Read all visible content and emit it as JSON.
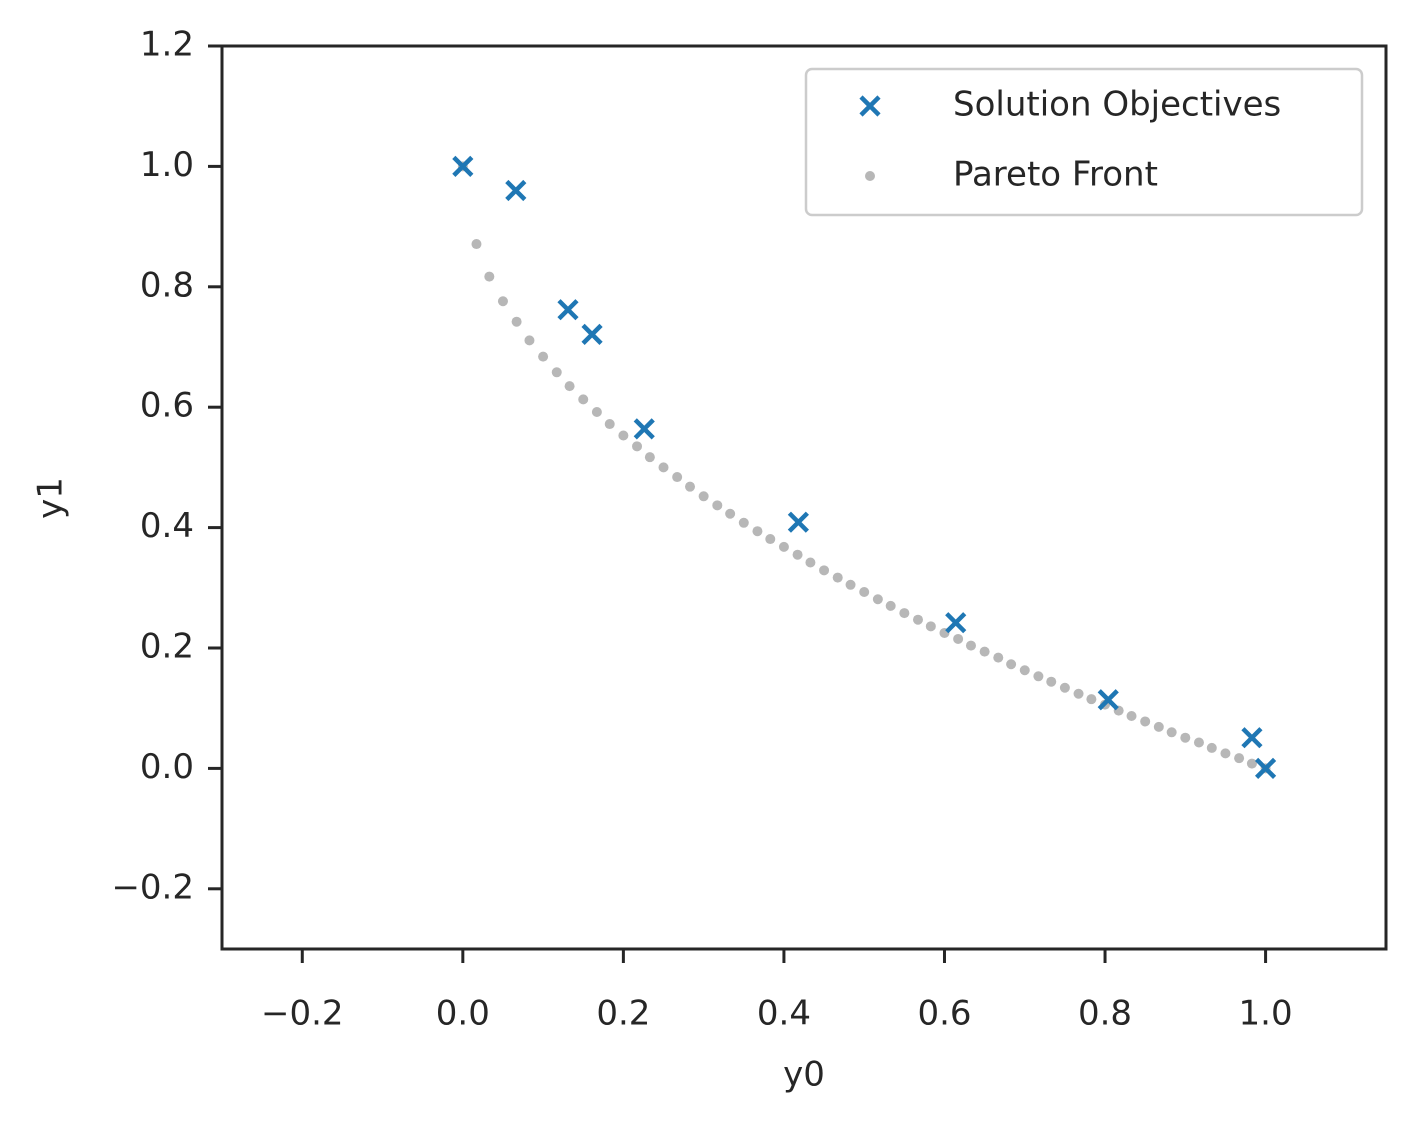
{
  "chart_data": {
    "type": "scatter",
    "xlabel": "y0",
    "ylabel": "y1",
    "xlim": [
      -0.3,
      1.15
    ],
    "ylim": [
      -0.3,
      1.2
    ],
    "xticks": [
      {
        "value": -0.2,
        "label": "−0.2"
      },
      {
        "value": 0,
        "label": "0.0"
      },
      0.2,
      0.4,
      0.6,
      0.8,
      {
        "value": 1,
        "label": "1.0"
      }
    ],
    "yticks": [
      {
        "value": -0.2,
        "label": "−0.2"
      },
      {
        "value": 0,
        "label": "0.0"
      },
      0.2,
      0.4,
      0.6,
      0.8,
      {
        "value": 1,
        "label": "1.0"
      },
      {
        "value": 1.2,
        "label": "1.2"
      }
    ],
    "grid": false,
    "legend": "upper right",
    "series": [
      {
        "name": "Solution Objectives",
        "color": "#1f77b4",
        "marker": "x",
        "x": [
          0.0,
          0.066,
          0.131,
          0.161,
          0.226,
          0.418,
          0.614,
          0.804,
          0.983,
          1.0
        ],
        "values": [
          1.0,
          0.96,
          0.762,
          0.721,
          0.564,
          0.409,
          0.242,
          0.114,
          0.051,
          0.0
        ]
      },
      {
        "name": "Pareto Front",
        "color": "#aaaaaa",
        "marker": "o",
        "x": [
          0,
          0.017,
          0.033,
          0.05,
          0.067,
          0.083,
          0.1,
          0.117,
          0.133,
          0.15,
          0.167,
          0.183,
          0.2,
          0.217,
          0.233,
          0.25,
          0.267,
          0.283,
          0.3,
          0.317,
          0.333,
          0.35,
          0.367,
          0.383,
          0.4,
          0.417,
          0.433,
          0.45,
          0.467,
          0.483,
          0.5,
          0.517,
          0.533,
          0.55,
          0.567,
          0.583,
          0.6,
          0.617,
          0.633,
          0.65,
          0.667,
          0.683,
          0.7,
          0.717,
          0.733,
          0.75,
          0.767,
          0.783,
          0.8,
          0.817,
          0.833,
          0.85,
          0.867,
          0.883,
          0.9,
          0.917,
          0.933,
          0.95,
          0.967,
          0.983,
          1
        ],
        "values": [
          1,
          0.871,
          0.817,
          0.776,
          0.742,
          0.711,
          0.684,
          0.658,
          0.635,
          0.613,
          0.592,
          0.572,
          0.553,
          0.535,
          0.517,
          0.5,
          0.484,
          0.468,
          0.452,
          0.437,
          0.423,
          0.408,
          0.394,
          0.381,
          0.368,
          0.355,
          0.342,
          0.329,
          0.317,
          0.305,
          0.293,
          0.281,
          0.27,
          0.258,
          0.247,
          0.236,
          0.225,
          0.215,
          0.204,
          0.194,
          0.184,
          0.173,
          0.163,
          0.153,
          0.144,
          0.134,
          0.124,
          0.115,
          0.106,
          0.096,
          0.087,
          0.078,
          0.069,
          0.06,
          0.051,
          0.043,
          0.034,
          0.025,
          0.017,
          0.008,
          0
        ]
      }
    ]
  }
}
